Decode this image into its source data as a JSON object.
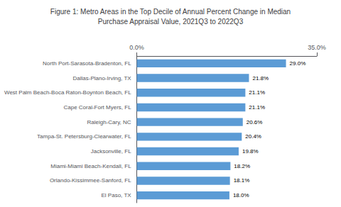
{
  "chart_data": {
    "type": "bar",
    "orientation": "horizontal",
    "title": "Figure 1: Metro Areas in the Top Decile of Annual Percent Change in Median\nPurchase Appraisal Value, 2021Q3 to 2022Q3",
    "categories": [
      "El Paso, TX",
      "Orlando-Kissimmee-Sanford, FL",
      "Miami-Miami Beach-Kendall, FL",
      "Jacksonville, FL",
      "Tampa-St. Petersburg-Clearwater, FL",
      "Raleigh-Cary, NC",
      "Cape Coral-Fort Myers, FL",
      "West Palm Beach-Boca Raton-Boynton Beach, FL",
      "Dallas-Plano-Irving, TX",
      "North Port-Sarasota-Bradenton, FL"
    ],
    "values": [
      18.0,
      18.1,
      18.2,
      19.8,
      20.4,
      20.6,
      21.1,
      21.1,
      21.8,
      29.0
    ],
    "value_labels": [
      "18.0%",
      "18.1%",
      "18.2%",
      "19.8%",
      "20.4%",
      "20.6%",
      "21.1%",
      "21.1%",
      "21.8%",
      "29.0%"
    ],
    "data_labels": true,
    "color": "#5b9bd5",
    "xlim": [
      0,
      35
    ],
    "xticks": [
      {
        "value": 0,
        "label": "0.0%"
      },
      {
        "value": 35,
        "label": "35.0%"
      }
    ],
    "grid": false
  }
}
